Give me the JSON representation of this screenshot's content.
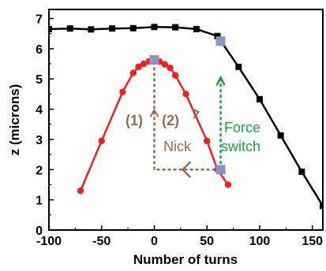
{
  "chart_data": {
    "type": "scatter",
    "xlabel": "Number of turns",
    "ylabel": "z (microns)",
    "xlim": [
      -100,
      160
    ],
    "ylim": [
      0,
      7.3
    ],
    "xticks": [
      -100,
      -50,
      0,
      50,
      100,
      150
    ],
    "yticks": [
      0,
      1,
      2,
      3,
      4,
      5,
      6,
      7
    ],
    "grid": false,
    "series": [
      {
        "color": "#000000",
        "marker": "square",
        "x": [
          -100,
          -80,
          -60,
          -40,
          -20,
          0,
          20,
          40,
          60,
          80,
          100,
          120,
          140,
          160
        ],
        "y": [
          6.65,
          6.67,
          6.64,
          6.67,
          6.68,
          6.72,
          6.71,
          6.65,
          6.42,
          5.4,
          4.33,
          3.13,
          1.93,
          0.8
        ]
      },
      {
        "color": "#ee2020",
        "marker": "circle",
        "x": [
          -70,
          -50,
          -30,
          -20,
          -15,
          -10,
          -5,
          0,
          5,
          10,
          15,
          20,
          30,
          50,
          60,
          70
        ],
        "y": [
          1.3,
          2.95,
          4.57,
          5.2,
          5.4,
          5.5,
          5.58,
          5.63,
          5.57,
          5.48,
          5.37,
          5.12,
          4.5,
          2.95,
          2.0,
          1.5
        ]
      }
    ],
    "highlight_points": {
      "color": "#8a93c8",
      "x": [
        0,
        63,
        63
      ],
      "y": [
        5.63,
        6.25,
        2.0
      ]
    },
    "annotations": {
      "step1": "(1)",
      "step2": "(2)",
      "nick": "Nick",
      "force1": "Force",
      "force2": "switch",
      "nick_color": "#9a6a4a",
      "force_color": "#1aa043"
    }
  }
}
